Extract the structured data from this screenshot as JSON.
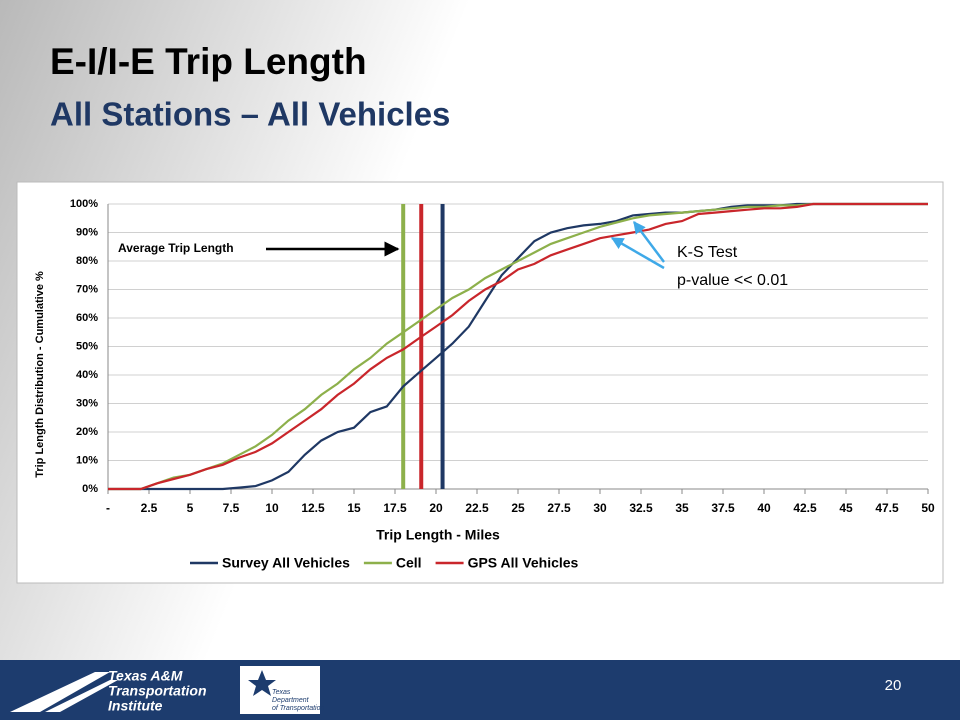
{
  "slide": {
    "title": "E-I/I-E Trip Length",
    "subtitle": "All Stations – All Vehicles",
    "page_number": "20",
    "logo_tti": [
      "Texas A&M",
      "Transportation",
      "Institute"
    ],
    "logo_txdot": [
      "Texas",
      "Department",
      "of Transportation"
    ]
  },
  "chart_data": {
    "type": "line",
    "xlabel": "Trip Length  - Miles",
    "ylabel": "Trip Length Distribution - Cumulative %",
    "annotations": [
      "Average Trip Length",
      "K-S Test",
      "p-value << 0.01"
    ],
    "x": [
      0,
      1,
      2,
      3,
      4,
      5,
      6,
      7,
      8,
      9,
      10,
      11,
      12,
      13,
      14,
      15,
      16,
      17,
      18,
      19,
      20,
      21,
      22,
      23,
      24,
      25,
      26,
      27,
      28,
      29,
      30,
      31,
      32,
      33,
      34,
      35,
      36,
      37,
      38,
      39,
      40,
      41,
      42,
      43,
      44,
      45,
      46,
      47,
      48,
      49,
      50
    ],
    "series": [
      {
        "name": "Survey All Vehicles",
        "color": "#1f3864",
        "values": [
          0,
          0,
          0,
          0,
          0,
          0,
          0,
          0,
          0.5,
          1,
          3,
          6,
          12,
          17,
          20,
          21.5,
          27,
          29,
          36,
          41,
          46,
          51,
          57,
          66,
          75,
          81,
          87,
          90,
          91.5,
          92.5,
          93,
          94,
          96,
          96.5,
          97,
          97,
          97.5,
          98,
          99,
          99.5,
          99.5,
          99.5,
          100,
          100,
          100,
          100,
          100,
          100,
          100,
          100,
          100
        ]
      },
      {
        "name": "Cell",
        "color": "#8db04b",
        "values": [
          0,
          0,
          0,
          2,
          4,
          5,
          7,
          9,
          12,
          15,
          19,
          24,
          28,
          33,
          37,
          42,
          46,
          51,
          55,
          59,
          63,
          67,
          70,
          74,
          77,
          80,
          83,
          86,
          88,
          90,
          92,
          93.5,
          95,
          96,
          96.5,
          97,
          97.5,
          98,
          98.5,
          99,
          99,
          99.5,
          99.5,
          100,
          100,
          100,
          100,
          100,
          100,
          100,
          100
        ]
      },
      {
        "name": "GPS All Vehicles",
        "color": "#c9262b",
        "values": [
          0,
          0,
          0,
          2,
          3.5,
          5,
          7,
          8.5,
          11,
          13,
          16,
          20,
          24,
          28,
          33,
          37,
          42,
          46,
          49,
          53,
          57,
          61,
          66,
          70,
          73,
          77,
          79,
          82,
          84,
          86,
          88,
          89,
          90,
          91,
          93,
          94,
          96.5,
          97,
          97.5,
          98,
          98.5,
          98.5,
          99,
          100,
          100,
          100,
          100,
          100,
          100,
          100,
          100
        ]
      }
    ],
    "reference_lines": [
      {
        "value": 18.0,
        "color": "#8db04b"
      },
      {
        "value": 19.1,
        "color": "#c9262b"
      },
      {
        "value": 20.4,
        "color": "#1f3864"
      }
    ],
    "xlim": [
      0,
      50
    ],
    "xticks": [
      {
        "value": 0,
        "label": "-"
      },
      2.5,
      5,
      7.5,
      10,
      12.5,
      15,
      17.5,
      20,
      22.5,
      25,
      27.5,
      30,
      32.5,
      35,
      37.5,
      40,
      42.5,
      45,
      47.5,
      50
    ],
    "ylim": [
      0,
      100
    ],
    "yticks": [
      {
        "value": 0,
        "label": "0%"
      },
      {
        "value": 10,
        "label": "10%"
      },
      {
        "value": 20,
        "label": "20%"
      },
      {
        "value": 30,
        "label": "30%"
      },
      {
        "value": 40,
        "label": "40%"
      },
      {
        "value": 50,
        "label": "50%"
      },
      {
        "value": 60,
        "label": "60%"
      },
      {
        "value": 70,
        "label": "70%"
      },
      {
        "value": 80,
        "label": "80%"
      },
      {
        "value": 90,
        "label": "90%"
      },
      {
        "value": 100,
        "label": "100%"
      }
    ],
    "grid": true,
    "legend": "bottom"
  }
}
